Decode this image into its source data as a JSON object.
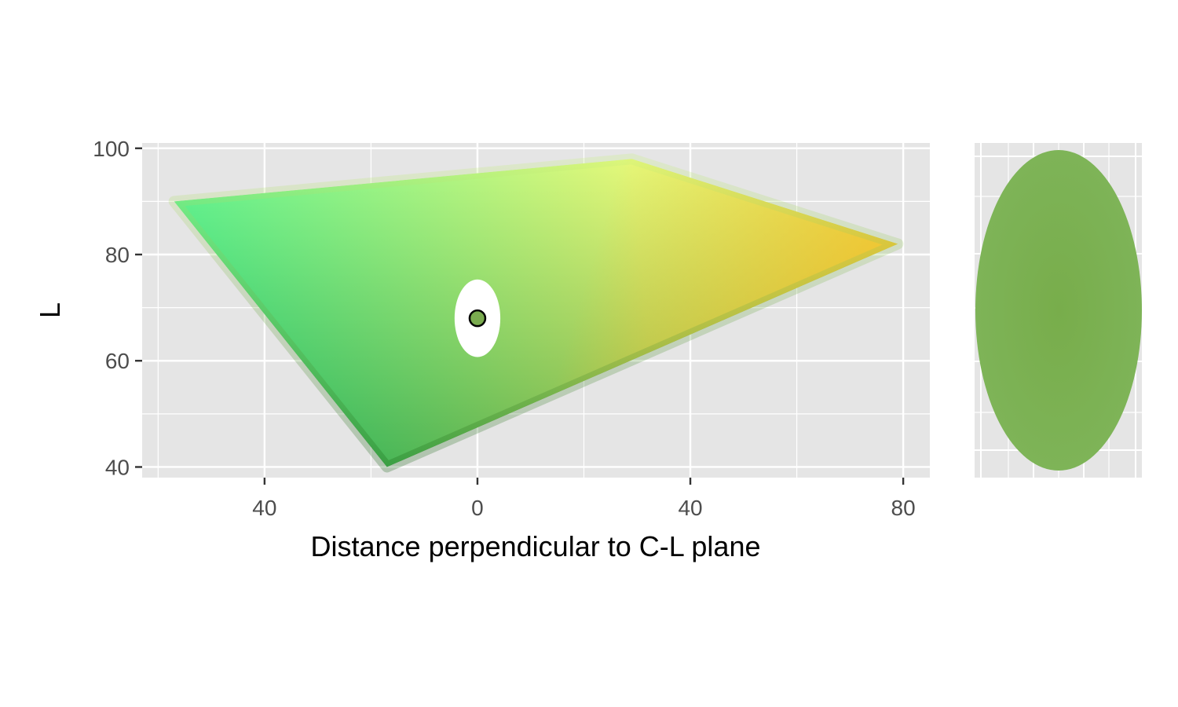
{
  "chart_data": [
    {
      "type": "scatter",
      "xlabel": "Distance perpendicular to C-L plane",
      "ylabel": "L",
      "xlim": [
        -63,
        85
      ],
      "ylim": [
        38,
        101
      ],
      "x_ticks": [
        {
          "value": -40,
          "label": "40"
        },
        {
          "value": 0,
          "label": "0"
        },
        {
          "value": 40,
          "label": "40"
        },
        {
          "value": 80,
          "label": "80"
        }
      ],
      "y_ticks": [
        {
          "value": 40,
          "label": "40"
        },
        {
          "value": 60,
          "label": "60"
        },
        {
          "value": 80,
          "label": "80"
        },
        {
          "value": 100,
          "label": "100"
        }
      ],
      "grid": true,
      "gamut_region": {
        "vertices": [
          [
            -57,
            90
          ],
          [
            29,
            98
          ],
          [
            79,
            82
          ],
          [
            -17,
            40
          ]
        ],
        "vertex_colors": [
          "#1effa8",
          "#ffff7a",
          "#ffb81a",
          "#0d5c0a"
        ]
      },
      "exclusion_region": {
        "x": 0,
        "y": 68,
        "rx": 4.3,
        "ry": 7.3,
        "color": "#ffffff"
      },
      "point": {
        "x": 0,
        "y": 68,
        "color": "#7aab4f"
      }
    },
    {
      "type": "scatter",
      "grid": true,
      "samples": {
        "shape": "ellipse",
        "color": "#78ad4b"
      }
    }
  ]
}
